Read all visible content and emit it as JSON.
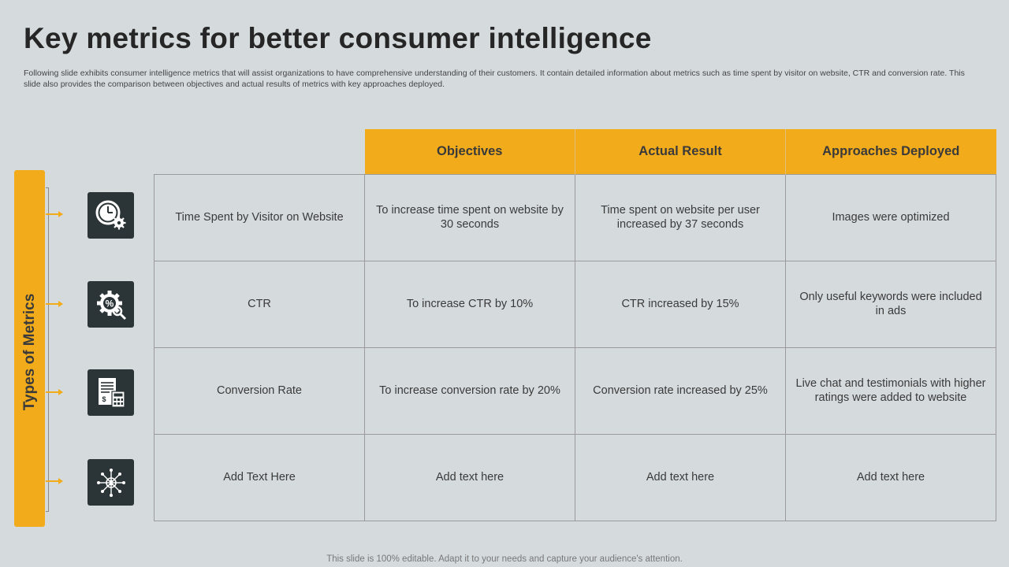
{
  "slide": {
    "title": "Key metrics for better consumer intelligence",
    "subtitle": "Following slide exhibits consumer intelligence metrics that will assist organizations to have comprehensive understanding of their customers. It contain detailed information about metrics such as time spent by visitor on website, CTR and conversion rate. This slide also provides the comparison between objectives and actual results of metrics with key approaches deployed.",
    "side_label": "Types of Metrics",
    "footer": "This slide is 100% editable. Adapt it to your needs and capture your audience's attention."
  },
  "colors": {
    "accent": "#f2ab1a",
    "icon_bg": "#2b3436",
    "background": "#d5dbdd"
  },
  "table": {
    "headers": [
      "Objectives",
      "Actual Result",
      "Approaches Deployed"
    ],
    "rows": [
      {
        "icon": "clock-gear-icon",
        "metric": "Time Spent by Visitor on Website",
        "objective": "To increase time spent on website by 30 seconds",
        "actual": "Time spent on website per user increased by 37 seconds",
        "approach": "Images were optimized"
      },
      {
        "icon": "percent-gear-icon",
        "metric": "CTR",
        "objective": "To increase CTR by 10%",
        "actual": "CTR increased by 15%",
        "approach": "Only useful keywords were included in ads"
      },
      {
        "icon": "invoice-calculator-icon",
        "metric": "Conversion Rate",
        "objective": "To increase conversion rate by 20%",
        "actual": "Conversion rate increased by 25%",
        "approach": "Live chat and testimonials with higher ratings were added to website"
      },
      {
        "icon": "network-hub-icon",
        "metric": "Add Text Here",
        "objective": "Add text here",
        "actual": "Add text here",
        "approach": "Add text here"
      }
    ]
  }
}
